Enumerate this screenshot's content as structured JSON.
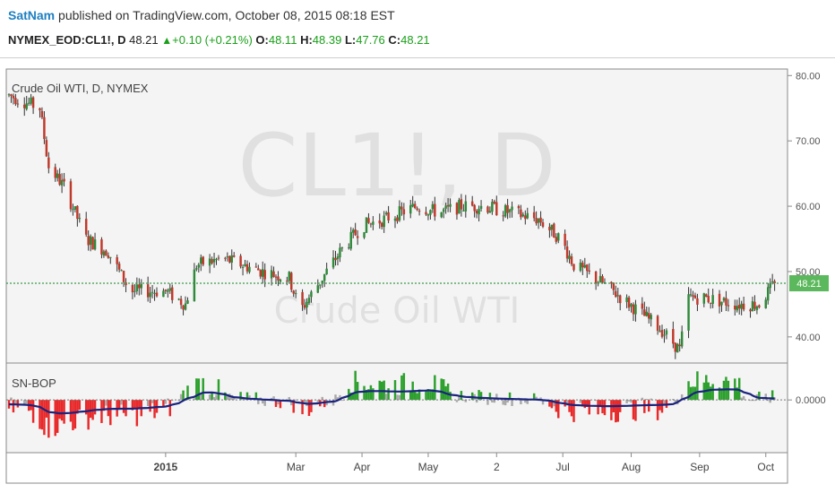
{
  "header": {
    "publisher": "SatNam",
    "published_text": " published on TradingView.com, October 08, 2015 08:18 EST",
    "symbol": "NYMEX_EOD:CL1!, D",
    "last": "48.21",
    "change": "+0.10 (+0.21%)",
    "o_label": "O:",
    "o_value": "48.11",
    "h_label": "H:",
    "h_value": "48.39",
    "l_label": "L:",
    "l_value": "47.76",
    "c_label": "C:",
    "c_value": "48.21"
  },
  "watermark": {
    "ticker": "CL1!, D",
    "name": "Crude Oil WTI"
  },
  "colors": {
    "up": "#2f8a3a",
    "down": "#c0392b",
    "wick": "#333333",
    "hist_pos": "#2ca02c",
    "hist_neg": "#e8292a",
    "hist_neu": "#a9a9a9",
    "signal": "#1a237e",
    "last_price_bg": "#5cb85c",
    "last_price_line": "#3a9a4a"
  },
  "chart_data": [
    {
      "type": "candlestick",
      "title": "Crude Oil WTI, D, NYMEX",
      "ylim": [
        36,
        81
      ],
      "yticks": [
        40,
        50,
        60,
        70,
        80
      ],
      "ytick_labels": [
        "40.00",
        "50.00",
        "60.00",
        "70.00",
        "80.00"
      ],
      "last_price": 48.21,
      "last_price_label": "48.21",
      "x_axis": {
        "ticks": [
          {
            "label": "2015",
            "bold": true,
            "day": 71
          },
          {
            "label": "Mar",
            "day": 130
          },
          {
            "label": "Apr",
            "day": 160
          },
          {
            "label": "May",
            "day": 190
          },
          {
            "label": "2",
            "day": 221
          },
          {
            "label": "Jul",
            "day": 251
          },
          {
            "label": "Aug",
            "day": 282
          },
          {
            "label": "Sep",
            "day": 313
          },
          {
            "label": "Oct",
            "day": 343
          }
        ],
        "range_days": [
          0,
          350
        ]
      },
      "anchors": [
        [
          0,
          77
        ],
        [
          14,
          75
        ],
        [
          18,
          66
        ],
        [
          25,
          63
        ],
        [
          35,
          55
        ],
        [
          45,
          53
        ],
        [
          55,
          47
        ],
        [
          71,
          47
        ],
        [
          80,
          45
        ],
        [
          85,
          51
        ],
        [
          97,
          52
        ],
        [
          115,
          50
        ],
        [
          127,
          49
        ],
        [
          132,
          44
        ],
        [
          140,
          48
        ],
        [
          150,
          53
        ],
        [
          160,
          57
        ],
        [
          170,
          58
        ],
        [
          185,
          60
        ],
        [
          195,
          59
        ],
        [
          205,
          60
        ],
        [
          215,
          60
        ],
        [
          228,
          59
        ],
        [
          240,
          58
        ],
        [
          250,
          55
        ],
        [
          256,
          51
        ],
        [
          270,
          48
        ],
        [
          285,
          44
        ],
        [
          296,
          41
        ],
        [
          304,
          38
        ],
        [
          308,
          46
        ],
        [
          315,
          46
        ],
        [
          330,
          45
        ],
        [
          340,
          45
        ],
        [
          347,
          48.21
        ]
      ]
    },
    {
      "type": "histogram",
      "title": "SN-BOP",
      "ylim": [
        -1.0,
        0.7
      ],
      "yticks": [
        0
      ],
      "ytick_labels": [
        "0.0000"
      ],
      "anchors": [
        [
          0,
          -0.15
        ],
        [
          10,
          -0.2
        ],
        [
          18,
          -0.55
        ],
        [
          25,
          -0.45
        ],
        [
          40,
          -0.3
        ],
        [
          55,
          -0.3
        ],
        [
          71,
          -0.2
        ],
        [
          80,
          0.15
        ],
        [
          88,
          0.35
        ],
        [
          100,
          0.05
        ],
        [
          115,
          0.0
        ],
        [
          127,
          -0.05
        ],
        [
          132,
          -0.2
        ],
        [
          140,
          -0.08
        ],
        [
          148,
          0.0
        ],
        [
          153,
          0.35
        ],
        [
          175,
          0.28
        ],
        [
          190,
          0.35
        ],
        [
          200,
          0.1
        ],
        [
          215,
          0.05
        ],
        [
          240,
          0.0
        ],
        [
          252,
          -0.2
        ],
        [
          270,
          -0.22
        ],
        [
          285,
          -0.18
        ],
        [
          300,
          -0.15
        ],
        [
          308,
          0.35
        ],
        [
          320,
          0.38
        ],
        [
          330,
          0.35
        ],
        [
          335,
          0.0
        ],
        [
          347,
          0.05
        ]
      ]
    }
  ]
}
